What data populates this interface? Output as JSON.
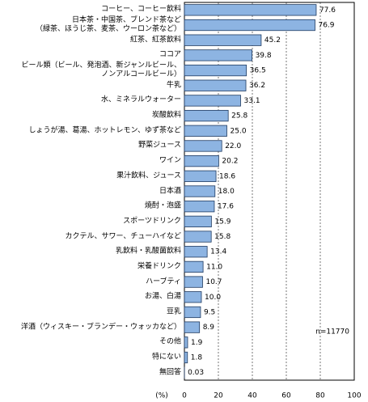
{
  "chart_data": {
    "type": "hbar",
    "x_label": "(%)",
    "annotation": "n=11770",
    "categories": [
      "コーヒー、コーヒー飲料",
      "日本茶・中国茶、ブレンド茶など\n（緑茶、ほうじ茶、麦茶、ウーロン茶など）",
      "紅茶、紅茶飲料",
      "ココア",
      "ビール類（ビール、発泡酒、新ジャンルビール、\nノンアルコールビール）",
      "牛乳",
      "水、ミネラルウォーター",
      "炭酸飲料",
      "しょうが湯、葛湯、ホットレモン、ゆず茶など",
      "野菜ジュース",
      "ワイン",
      "果汁飲料、ジュース",
      "日本酒",
      "焼酎・泡盛",
      "スポーツドリンク",
      "カクテル、サワー、チューハイなど",
      "乳飲料・乳酸菌飲料",
      "栄養ドリンク",
      "ハーブティ",
      "お湯、白湯",
      "豆乳",
      "洋酒（ウィスキー・ブランデー・ウォッカなど）",
      "その他",
      "特にない",
      "無回答"
    ],
    "values": [
      77.6,
      76.9,
      45.2,
      39.8,
      36.5,
      36.2,
      33.1,
      25.8,
      25.0,
      22.0,
      20.2,
      18.6,
      18.0,
      17.6,
      15.9,
      15.8,
      13.4,
      11.0,
      10.7,
      10.0,
      9.5,
      8.9,
      1.9,
      1.8,
      0.03
    ],
    "value_labels": [
      "77.6",
      "76.9",
      "45.2",
      "39.8",
      "36.5",
      "36.2",
      "33.1",
      "25.8",
      "25.0",
      "22.0",
      "20.2",
      "18.6",
      "18.0",
      "17.6",
      "15.9",
      "15.8",
      "13.4",
      "11.0",
      "10.7",
      "10.0",
      "9.5",
      "8.9",
      "1.9",
      "1.8",
      "0.03"
    ],
    "color": "#8db4e2",
    "xlim": [
      0,
      100
    ],
    "xticks": [
      0,
      20,
      40,
      60,
      80,
      100
    ],
    "grid": true
  }
}
